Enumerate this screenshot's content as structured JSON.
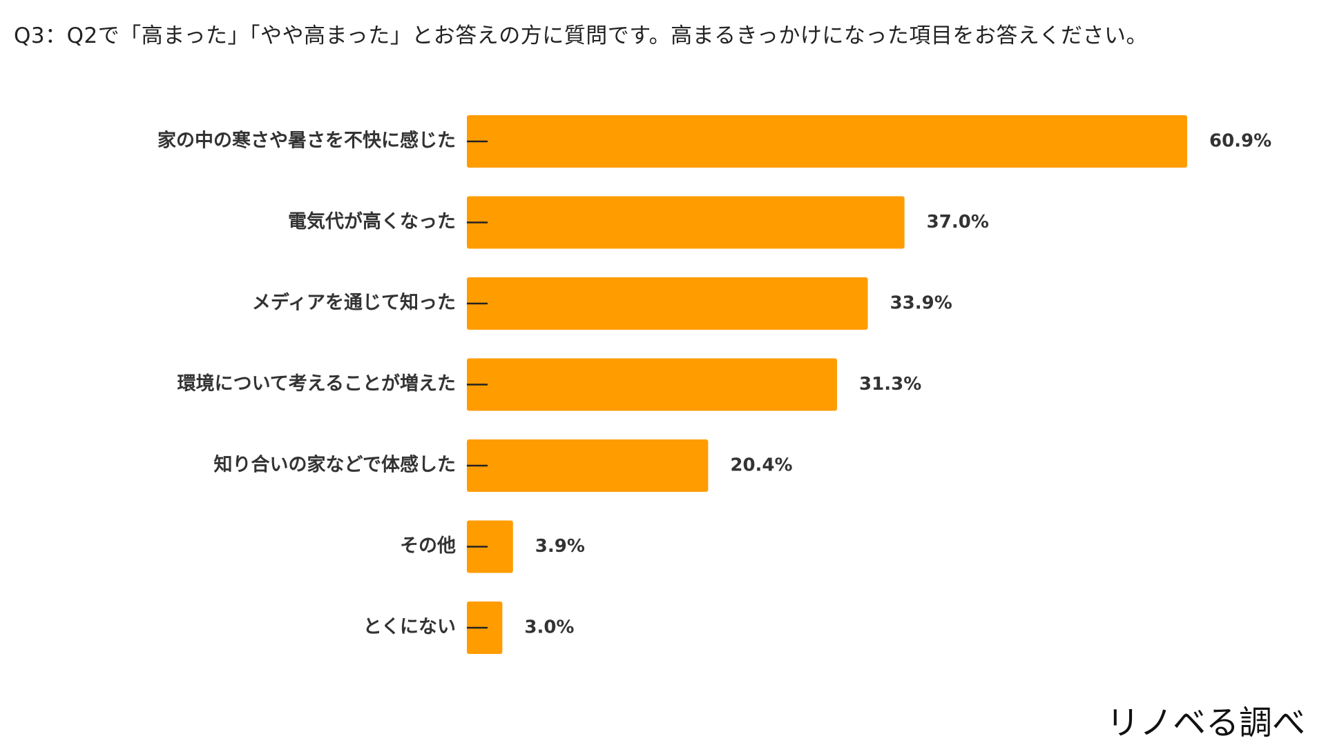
{
  "question": "Q3：Q2で「高まった」「やや高まった」とお答えの方に質問です。高まるきっかけになった項目をお答えください。",
  "source": "リノベる調べ",
  "colors": {
    "bar": "#FF9C00",
    "text": "#333333"
  },
  "chart_data": {
    "type": "bar",
    "orientation": "horizontal",
    "categories": [
      "家の中の寒さや暑さを不快に感じた",
      "電気代が高くなった",
      "メディアを通じて知った",
      "環境について考えることが増えた",
      "知り合いの家などで体感した",
      "その他",
      "とくにない"
    ],
    "values": [
      60.9,
      37.0,
      33.9,
      31.3,
      20.4,
      3.9,
      3.0
    ],
    "value_labels": [
      "60.9%",
      "37.0%",
      "33.9%",
      "31.3%",
      "20.4%",
      "3.9%",
      "3.0%"
    ],
    "unit": "%",
    "xlim": [
      0,
      100
    ],
    "grid": false,
    "legend": false
  }
}
